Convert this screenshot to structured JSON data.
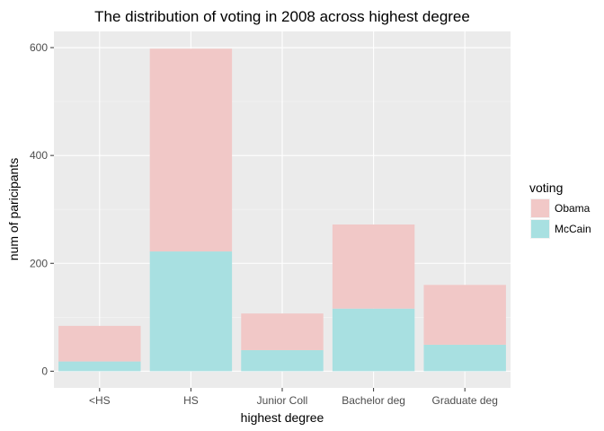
{
  "chart_data": {
    "type": "bar",
    "stacked": true,
    "title": "The distribution of voting in 2008 across highest degree",
    "xlabel": "highest degree",
    "ylabel": "num of paricipants",
    "categories": [
      "<HS",
      "HS",
      "Junior Coll",
      "Bachelor deg",
      "Graduate deg"
    ],
    "series": [
      {
        "name": "McCain",
        "color": "#a8e0e1",
        "values": [
          18,
          222,
          39,
          116,
          49
        ]
      },
      {
        "name": "Obama",
        "color": "#f1c8c7",
        "values": [
          66,
          376,
          68,
          156,
          111
        ]
      }
    ],
    "ylim": [
      0,
      620
    ],
    "yticks": [
      0,
      200,
      400,
      600
    ],
    "grid": true,
    "legend": {
      "title": "voting",
      "placement": "right",
      "items": [
        {
          "label": "Obama",
          "color": "#f1c8c7"
        },
        {
          "label": "McCain",
          "color": "#a8e0e1"
        }
      ]
    }
  }
}
